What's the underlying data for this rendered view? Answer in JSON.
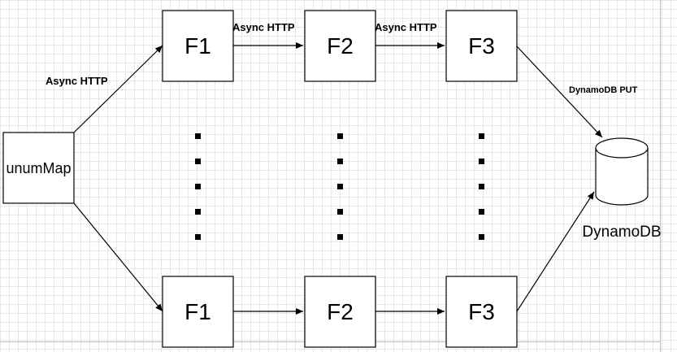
{
  "nodes": {
    "source": "unumMap",
    "top_f1": "F1",
    "top_f2": "F2",
    "top_f3": "F3",
    "bottom_f1": "F1",
    "bottom_f2": "F2",
    "bottom_f3": "F3",
    "database": "DynamoDB"
  },
  "edges": {
    "source_to_top_f1": "Async HTTP",
    "top_f1_to_f2": "Async HTTP",
    "top_f2_to_f3": "Async HTTP",
    "top_f3_to_db": "DynamoDB PUT"
  },
  "ellipsis_dot_count": 5,
  "colors": {
    "stroke": "#000000",
    "grid": "#e6e6e6",
    "background": "#ffffff"
  }
}
